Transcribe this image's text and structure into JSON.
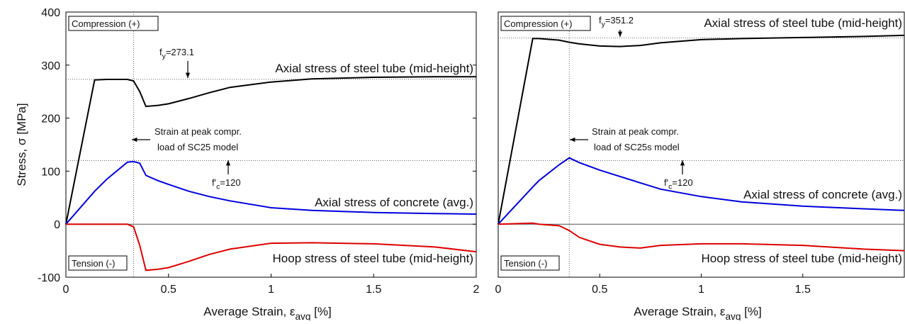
{
  "chart_data": [
    {
      "type": "line",
      "x": [
        0,
        0.14,
        0.2,
        0.3,
        0.33,
        0.36,
        0.39,
        0.45,
        0.5,
        0.6,
        0.7,
        0.8,
        1.0,
        1.2,
        1.5,
        1.8,
        2.0
      ],
      "series": [
        {
          "name": "Axial stress of steel tube (mid-height)",
          "color": "#000000",
          "values": [
            0,
            272,
            273,
            273,
            270,
            250,
            222,
            224,
            227,
            237,
            248,
            258,
            268,
            274,
            277,
            278,
            278
          ]
        },
        {
          "name": "Axial stress of concrete (avg.)",
          "color": "#0000dd",
          "values": [
            0,
            62,
            85,
            117,
            118,
            115,
            92,
            82,
            75,
            62,
            52,
            44,
            31,
            26,
            22,
            20,
            19
          ]
        },
        {
          "name": "Hoop stress of steel tube (mid-height)",
          "color": "#dd0000",
          "values": [
            0,
            0,
            0,
            0,
            -5,
            -40,
            -87,
            -85,
            -82,
            -70,
            -57,
            -47,
            -36,
            -35,
            -37,
            -43,
            -52
          ]
        }
      ],
      "xlim": [
        0,
        2
      ],
      "ylim": [
        -100,
        400
      ],
      "xticks": [
        0,
        0.5,
        1,
        1.5,
        2
      ],
      "yticks": [
        -100,
        0,
        100,
        200,
        300,
        400
      ],
      "ylabel": "Stress, σ [MPa]",
      "xlabel": {
        "base": "Average Strain, ε",
        "sub": "avg",
        "rest": "  [%]"
      },
      "compression_box": "Compression (+)",
      "tension_box": "Tension (-)",
      "fy": 273.1,
      "fc": 120,
      "peak_strain": 0.33,
      "fy_label": {
        "base": "f",
        "sub": "y",
        "rest": "=273.1"
      },
      "fc_label": {
        "base": "f'",
        "sub": "c",
        "rest": "=120"
      },
      "peak_label": [
        "Strain at peak compr.",
        "load of SC25 model"
      ]
    },
    {
      "type": "line",
      "x": [
        0,
        0.17,
        0.2,
        0.3,
        0.35,
        0.4,
        0.5,
        0.6,
        0.7,
        0.8,
        1.0,
        1.2,
        1.5,
        1.8,
        2.0
      ],
      "series": [
        {
          "name": "Axial stress of steel tube (mid-height)",
          "color": "#000000",
          "values": [
            0,
            350,
            350,
            347,
            343,
            340,
            336,
            335,
            337,
            342,
            348,
            350,
            352,
            354,
            356
          ]
        },
        {
          "name": "Axial stress of concrete (avg.)",
          "color": "#0000dd",
          "values": [
            0,
            70,
            82,
            112,
            125,
            116,
            102,
            90,
            78,
            66,
            52,
            42,
            34,
            29,
            26
          ]
        },
        {
          "name": "Hoop stress of steel tube (mid-height)",
          "color": "#dd0000",
          "values": [
            0,
            2,
            0,
            -3,
            -12,
            -25,
            -38,
            -43,
            -45,
            -40,
            -37,
            -37,
            -40,
            -47,
            -50
          ]
        }
      ],
      "xlim": [
        0,
        2
      ],
      "ylim": [
        -100,
        400
      ],
      "xticks": [
        0,
        0.5,
        1,
        1.5
      ],
      "xlabel": {
        "base": "Average Strain, ε",
        "sub": "avg",
        "rest": "  [%]"
      },
      "compression_box": "Compression (+)",
      "tension_box": "Tension (-)",
      "fy": 351.2,
      "fc": 120,
      "peak_strain": 0.35,
      "fy_label": {
        "base": "f",
        "sub": "y",
        "rest": "=351.2"
      },
      "fc_label": {
        "base": "f'",
        "sub": "c",
        "rest": "=120"
      },
      "peak_label": [
        "Strain at peak compr.",
        "load of SC25s model"
      ]
    }
  ]
}
